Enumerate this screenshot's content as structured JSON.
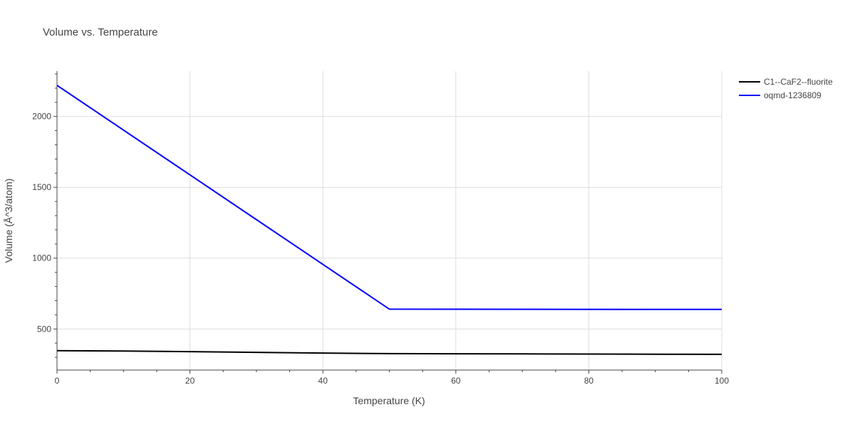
{
  "chart_data": {
    "type": "line",
    "title": "Volume vs. Temperature",
    "xlabel": "Temperature (K)",
    "ylabel": "Volume (Å^3/atom)",
    "xlim": [
      0,
      100
    ],
    "ylim": [
      210,
      2320
    ],
    "x_ticks": [
      0,
      20,
      40,
      60,
      80,
      100
    ],
    "y_ticks": [
      500,
      1000,
      1500,
      2000
    ],
    "grid": true,
    "legend_position": "top-right",
    "series": [
      {
        "name": "C1--CaF2--fluorite",
        "color": "#000000",
        "x": [
          0,
          10,
          20,
          30,
          40,
          50,
          60,
          70,
          80,
          90,
          100
        ],
        "y": [
          347,
          344,
          340,
          335,
          330,
          326,
          325,
          324,
          323,
          322,
          321
        ]
      },
      {
        "name": "oqmd-1236809",
        "color": "#0000ff",
        "x": [
          0,
          50,
          100
        ],
        "y": [
          2220,
          640,
          638
        ]
      }
    ]
  }
}
